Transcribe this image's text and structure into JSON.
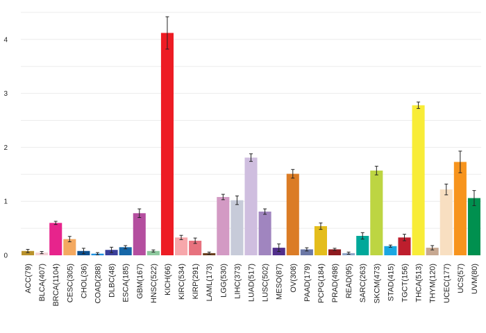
{
  "chart_data": {
    "type": "bar",
    "title": "",
    "xlabel": "",
    "ylabel": "",
    "ylim": [
      0,
      4.5
    ],
    "yticks": [
      0,
      1,
      2,
      3,
      4
    ],
    "grid": true,
    "legend": "none",
    "categories": [
      "ACC(79)",
      "BLCA(407)",
      "BRCA(1104)",
      "CESC(305)",
      "CHOL(36)",
      "COAD(288)",
      "DLBC(48)",
      "ESCA(185)",
      "GBM(167)",
      "HNSC(522)",
      "KICH(66)",
      "KIRC(534)",
      "KIRP(291)",
      "LAML(173)",
      "LGG(530)",
      "LIHC(373)",
      "LUAD(517)",
      "LUSC(502)",
      "MESO(87)",
      "OV(308)",
      "PAAD(179)",
      "PCPG(184)",
      "PRAD(498)",
      "READ(95)",
      "SARC(263)",
      "SKCM(473)",
      "STAD(415)",
      "TGCT(156)",
      "THCA(513)",
      "THYM(120)",
      "UCEC(177)",
      "UCS(57)",
      "UVM(80)"
    ],
    "values": [
      0.08,
      0.05,
      0.6,
      0.3,
      0.08,
      0.03,
      0.1,
      0.15,
      0.78,
      0.08,
      4.12,
      0.33,
      0.27,
      0.04,
      1.08,
      1.02,
      1.81,
      0.81,
      0.14,
      1.51,
      0.11,
      0.54,
      0.11,
      0.04,
      0.36,
      1.57,
      0.17,
      0.33,
      2.78,
      0.14,
      1.22,
      1.73,
      1.06
    ],
    "errors": [
      0.03,
      0.02,
      0.03,
      0.05,
      0.05,
      0.02,
      0.05,
      0.03,
      0.08,
      0.02,
      0.3,
      0.04,
      0.05,
      0.02,
      0.05,
      0.08,
      0.07,
      0.05,
      0.07,
      0.08,
      0.03,
      0.06,
      0.02,
      0.02,
      0.06,
      0.08,
      0.02,
      0.06,
      0.06,
      0.04,
      0.1,
      0.2,
      0.14
    ],
    "colors": [
      "#B9922C",
      "#F3D3D7",
      "#E7248C",
      "#F4A960",
      "#0D4F8E",
      "#1E90E0",
      "#3A3F9A",
      "#1667A8",
      "#B44E9F",
      "#8EC99E",
      "#ED1C24",
      "#F7A7AB",
      "#E7727E",
      "#6B3F1E",
      "#D39AC4",
      "#C7CBD9",
      "#CFBEDF",
      "#A085BF",
      "#512E8B",
      "#DB7C26",
      "#6C78A6",
      "#E4BD1C",
      "#8E1B1F",
      "#8FA6C8",
      "#00A89A",
      "#BDD542",
      "#1BA7E1",
      "#BE1E2D",
      "#F8EC37",
      "#C7A891",
      "#F8DFC1",
      "#F7941D",
      "#00904F"
    ]
  }
}
